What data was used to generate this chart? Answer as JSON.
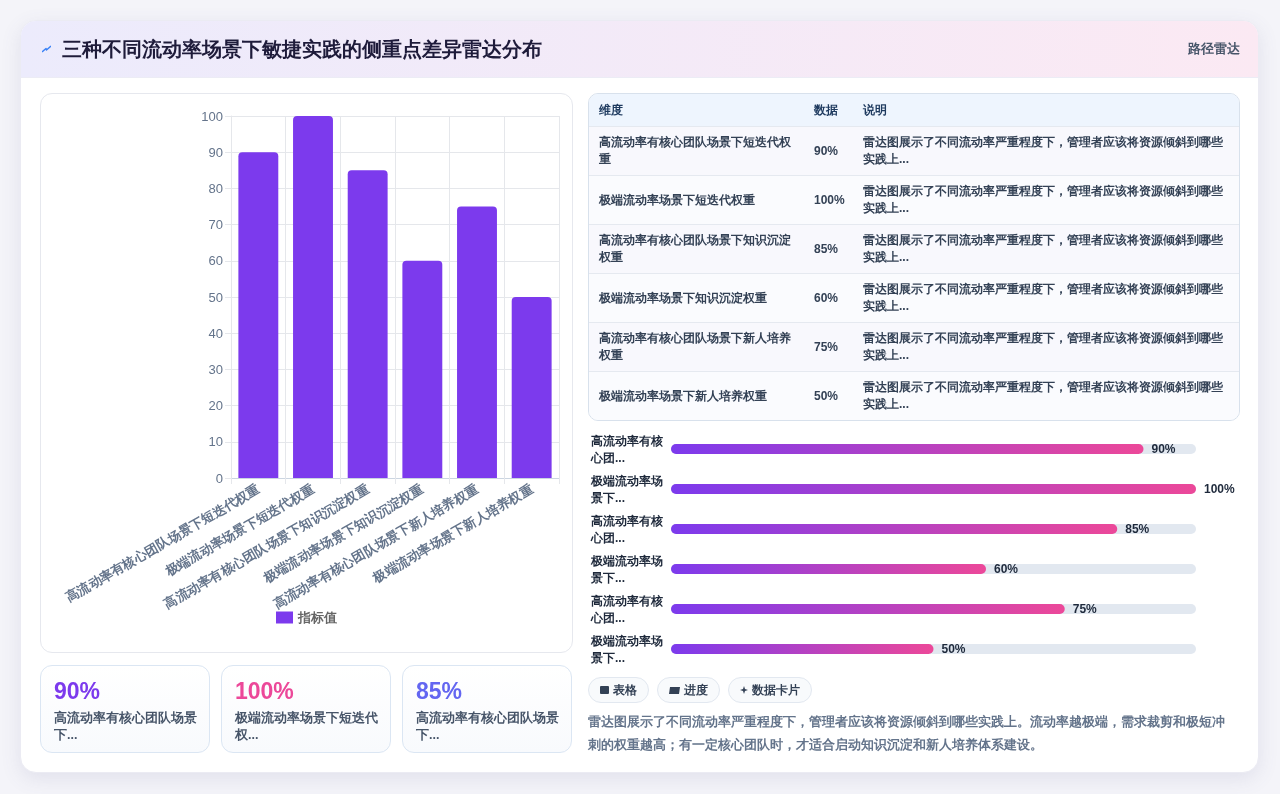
{
  "chart_data": [
    {
      "type": "bar",
      "title": "三种不同流动率场景下敏捷实践的侧重点差异雷达分布",
      "categories": [
        "高流动率有核心团队场景下短迭代权重",
        "极端流动率场景下短迭代权重",
        "高流动率有核心团队场景下知识沉淀权重",
        "极端流动率场景下知识沉淀权重",
        "高流动率有核心团队场景下新人培养权重",
        "极端流动率场景下新人培养权重"
      ],
      "series": [
        {
          "name": "指标值",
          "color": "#7c3aed",
          "values": [
            90,
            100,
            85,
            60,
            75,
            50
          ]
        }
      ],
      "ylim": [
        0,
        100
      ],
      "yticks": [
        0,
        10,
        20,
        30,
        40,
        50,
        60,
        70,
        80,
        90,
        100
      ],
      "grid": true,
      "legend": "bottom"
    },
    {
      "type": "other",
      "title": "路径雷达",
      "categories": [
        "高流动率有核心团队场景下短迭代权重",
        "极端流动率场景下短迭代权重",
        "高流动率有核心团队场景下知识沉淀权重",
        "极端流动率场景下知识沉淀权重",
        "高流动率有核心团队场景下新人培养权重",
        "极端流动率场景下新人培养权重"
      ],
      "value_labels": [
        "90%",
        "100%",
        "85%",
        "60%",
        "75%",
        "50%"
      ],
      "annotations": [
        "维度",
        "数据",
        "说明",
        "雷达图展示了不同流动率严重程度下，管理者应该将资源倾斜到哪些实践上...",
        "雷达图展示了不同流动率严重程度下，管理者应该将资源倾斜到哪些实践上...",
        "雷达图展示了不同流动率严重程度下，管理者应该将资源倾斜到哪些实践上...",
        "雷达图展示了不同流动率严重程度下，管理者应该将资源倾斜到哪些实践上...",
        "雷达图展示了不同流动率严重程度下，管理者应该将资源倾斜到哪些实践上...",
        "雷达图展示了不同流动率严重程度下，管理者应该将资源倾斜到哪些实践上..."
      ]
    },
    {
      "type": "bar",
      "orientation": "horizontal",
      "categories": [
        "高流动率有核心团...",
        "极端流动率场景下...",
        "高流动率有核心团...",
        "极端流动率场景下...",
        "高流动率有核心团...",
        "极端流动率场景下..."
      ],
      "values": [
        90,
        100,
        85,
        60,
        75,
        50
      ],
      "value_labels": [
        "90%",
        "100%",
        "85%",
        "60%",
        "75%",
        "50%"
      ],
      "color": "#7c3aed",
      "tick_labels": "y",
      "annotations": [
        "表格",
        "进度",
        "数据卡片",
        "雷达图展示了不同流动率严重程度下，管理者应该将资源倾斜到哪些实践上。流动率越极端，需求裁剪和极短冲刺的权重越高；有一定核心团队时，才适合启动知识沉淀和新人培养体系建设。"
      ]
    },
    {
      "type": "other",
      "categories": [
        "高流动率有核心团队场景下...",
        "极端流动率场景下短迭代权...",
        "高流动率有核心团队场景下..."
      ],
      "value_labels": [
        "90%",
        "100%",
        "85%"
      ]
    }
  ]
}
